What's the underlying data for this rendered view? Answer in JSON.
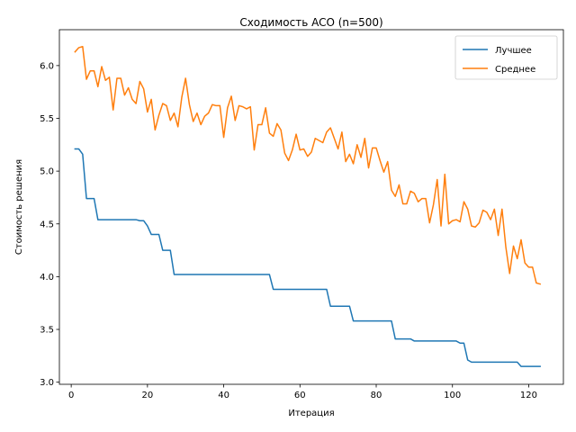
{
  "chart_data": {
    "type": "line",
    "title": "Сходимость ACO (n=500)",
    "xlabel": "Итерация",
    "ylabel": "Стоимость решения",
    "xlim": [
      -3.1,
      129.1
    ],
    "ylim": [
      2.98,
      6.34
    ],
    "xticks": [
      0,
      20,
      40,
      60,
      80,
      100,
      120
    ],
    "yticks": [
      3.0,
      3.5,
      4.0,
      4.5,
      5.0,
      5.5,
      6.0
    ],
    "grid": false,
    "legend_position": "top-right",
    "series": [
      {
        "name": "Лучшее",
        "color": "#1f77b4",
        "x": [
          1,
          2,
          3,
          4,
          5,
          6,
          7,
          8,
          9,
          10,
          11,
          12,
          13,
          14,
          15,
          16,
          17,
          18,
          19,
          20,
          21,
          22,
          23,
          24,
          25,
          26,
          27,
          28,
          29,
          30,
          31,
          32,
          33,
          34,
          35,
          36,
          37,
          38,
          39,
          40,
          41,
          42,
          43,
          44,
          45,
          46,
          47,
          48,
          49,
          50,
          51,
          52,
          53,
          54,
          55,
          56,
          57,
          58,
          59,
          60,
          61,
          62,
          63,
          64,
          65,
          66,
          67,
          68,
          69,
          70,
          71,
          72,
          73,
          74,
          75,
          76,
          77,
          78,
          79,
          80,
          81,
          82,
          83,
          84,
          85,
          86,
          87,
          88,
          89,
          90,
          91,
          92,
          93,
          94,
          95,
          96,
          97,
          98,
          99,
          100,
          101,
          102,
          103,
          104,
          105,
          106,
          107,
          108,
          109,
          110,
          111,
          112,
          113,
          114,
          115,
          116,
          117,
          118,
          119,
          120,
          121,
          122,
          123
        ],
        "y": [
          5.21,
          5.21,
          5.16,
          4.74,
          4.74,
          4.74,
          4.54,
          4.54,
          4.54,
          4.54,
          4.54,
          4.54,
          4.54,
          4.54,
          4.54,
          4.54,
          4.54,
          4.53,
          4.53,
          4.48,
          4.4,
          4.4,
          4.4,
          4.25,
          4.25,
          4.25,
          4.02,
          4.02,
          4.02,
          4.02,
          4.02,
          4.02,
          4.02,
          4.02,
          4.02,
          4.02,
          4.02,
          4.02,
          4.02,
          4.02,
          4.02,
          4.02,
          4.02,
          4.02,
          4.02,
          4.02,
          4.02,
          4.02,
          4.02,
          4.02,
          4.02,
          4.02,
          3.88,
          3.88,
          3.88,
          3.88,
          3.88,
          3.88,
          3.88,
          3.88,
          3.88,
          3.88,
          3.88,
          3.88,
          3.88,
          3.88,
          3.88,
          3.72,
          3.72,
          3.72,
          3.72,
          3.72,
          3.72,
          3.58,
          3.58,
          3.58,
          3.58,
          3.58,
          3.58,
          3.58,
          3.58,
          3.58,
          3.58,
          3.58,
          3.41,
          3.41,
          3.41,
          3.41,
          3.41,
          3.39,
          3.39,
          3.39,
          3.39,
          3.39,
          3.39,
          3.39,
          3.39,
          3.39,
          3.39,
          3.39,
          3.39,
          3.37,
          3.37,
          3.21,
          3.19,
          3.19,
          3.19,
          3.19,
          3.19,
          3.19,
          3.19,
          3.19,
          3.19,
          3.19,
          3.19,
          3.19,
          3.19,
          3.15,
          3.15,
          3.15,
          3.15,
          3.15,
          3.15
        ]
      },
      {
        "name": "Среднее",
        "color": "#ff7f0e",
        "x": [
          1,
          2,
          3,
          4,
          5,
          6,
          7,
          8,
          9,
          10,
          11,
          12,
          13,
          14,
          15,
          16,
          17,
          18,
          19,
          20,
          21,
          22,
          23,
          24,
          25,
          26,
          27,
          28,
          29,
          30,
          31,
          32,
          33,
          34,
          35,
          36,
          37,
          38,
          39,
          40,
          41,
          42,
          43,
          44,
          45,
          46,
          47,
          48,
          49,
          50,
          51,
          52,
          53,
          54,
          55,
          56,
          57,
          58,
          59,
          60,
          61,
          62,
          63,
          64,
          65,
          66,
          67,
          68,
          69,
          70,
          71,
          72,
          73,
          74,
          75,
          76,
          77,
          78,
          79,
          80,
          81,
          82,
          83,
          84,
          85,
          86,
          87,
          88,
          89,
          90,
          91,
          92,
          93,
          94,
          95,
          96,
          97,
          98,
          99,
          100,
          101,
          102,
          103,
          104,
          105,
          106,
          107,
          108,
          109,
          110,
          111,
          112,
          113,
          114,
          115,
          116,
          117,
          118,
          119,
          120,
          121,
          122,
          123
        ],
        "y": [
          6.13,
          6.17,
          6.18,
          5.87,
          5.95,
          5.95,
          5.8,
          5.99,
          5.86,
          5.89,
          5.58,
          5.88,
          5.88,
          5.72,
          5.79,
          5.68,
          5.64,
          5.85,
          5.78,
          5.56,
          5.68,
          5.39,
          5.53,
          5.64,
          5.62,
          5.48,
          5.55,
          5.42,
          5.7,
          5.88,
          5.63,
          5.47,
          5.55,
          5.44,
          5.52,
          5.55,
          5.63,
          5.62,
          5.62,
          5.32,
          5.6,
          5.71,
          5.48,
          5.62,
          5.61,
          5.59,
          5.61,
          5.2,
          5.44,
          5.44,
          5.6,
          5.36,
          5.33,
          5.45,
          5.39,
          5.17,
          5.1,
          5.2,
          5.35,
          5.2,
          5.21,
          5.14,
          5.18,
          5.31,
          5.29,
          5.27,
          5.37,
          5.41,
          5.31,
          5.21,
          5.37,
          5.09,
          5.16,
          5.07,
          5.25,
          5.13,
          5.31,
          5.03,
          5.22,
          5.22,
          5.1,
          4.99,
          5.09,
          4.82,
          4.76,
          4.87,
          4.69,
          4.69,
          4.81,
          4.79,
          4.71,
          4.74,
          4.74,
          4.51,
          4.68,
          4.92,
          4.48,
          4.97,
          4.5,
          4.53,
          4.54,
          4.52,
          4.71,
          4.64,
          4.48,
          4.47,
          4.51,
          4.63,
          4.61,
          4.54,
          4.64,
          4.39,
          4.64,
          4.28,
          4.03,
          4.29,
          4.17,
          4.35,
          4.13,
          4.09,
          4.09,
          3.94,
          3.93
        ]
      }
    ]
  }
}
